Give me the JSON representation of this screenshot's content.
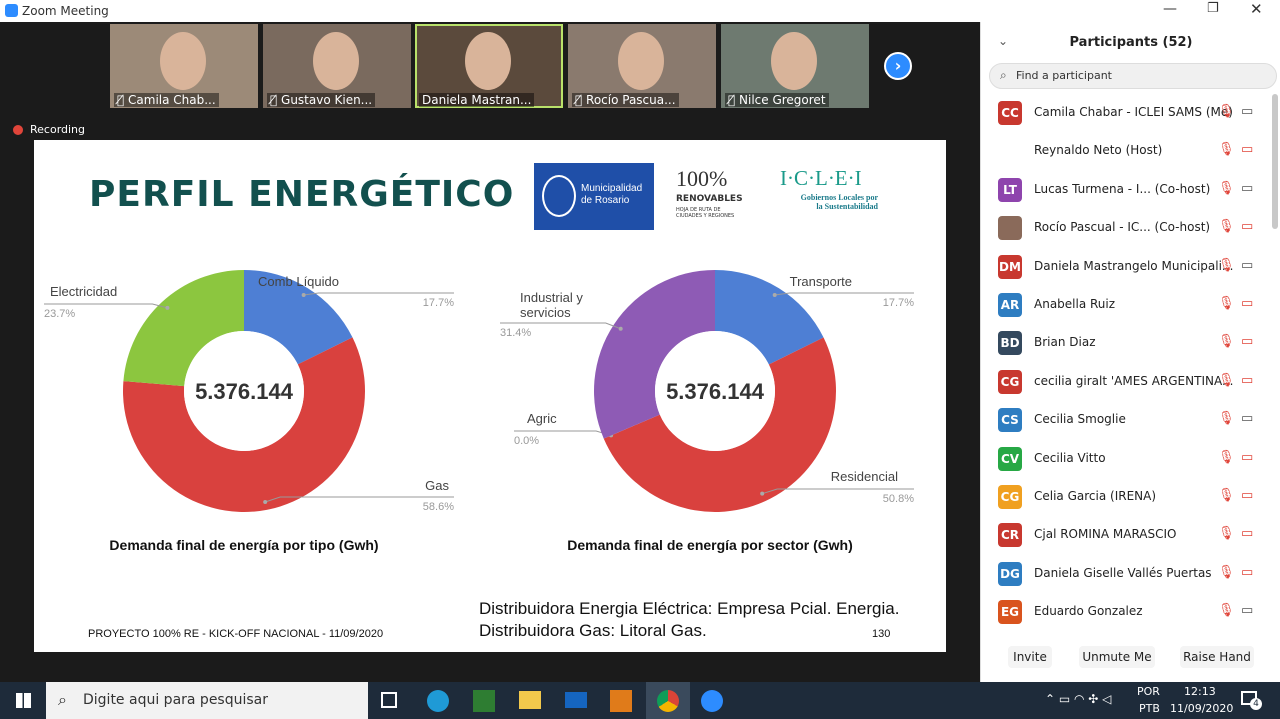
{
  "window": {
    "title": "Zoom Meeting"
  },
  "video_strip": {
    "tiles": [
      "Camila Chab...",
      "Gustavo Kien...",
      "Daniela Mastran...",
      "Rocío Pascua...",
      "Nilce Gregoret"
    ]
  },
  "recording": "Recording",
  "slide": {
    "title": "PERFIL ENERGÉTICO",
    "logos": {
      "municipality": "Municipalidad de Rosario",
      "renewables_big": "100%",
      "renewables": "RENOVABLES",
      "renewables_sub": "HOJA DE RUTA DE CIUDADES Y REGIONES",
      "iclei": "I·C·L·E·I",
      "iclei_sub": "Gobiernos Locales por la Sustentabilidad"
    },
    "charts": [
      {
        "type": "donut",
        "center_label": "5.376.144",
        "caption": "Demanda final de energía por tipo (Gwh)",
        "categories": [
          "Comb Líquido",
          "Gas",
          "Electricidad"
        ],
        "values": [
          17.7,
          58.6,
          23.7
        ],
        "value_labels": [
          "17.7%",
          "58.6%",
          "23.7%"
        ],
        "colors": [
          "#4e7fd4",
          "#d9413e",
          "#8cc63f"
        ]
      },
      {
        "type": "donut",
        "center_label": "5.376.144",
        "caption": "Demanda final de energía por sector (Gwh)",
        "categories": [
          "Transporte",
          "Residencial",
          "Agric",
          "Industrial y servicios"
        ],
        "values": [
          17.7,
          50.8,
          0.0,
          31.4
        ],
        "value_labels": [
          "17.7%",
          "50.8%",
          "0.0%",
          "31.4%"
        ],
        "colors": [
          "#4e7fd4",
          "#d9413e",
          "#f0b400",
          "#8e5bb5"
        ]
      }
    ],
    "distributors": [
      "Distribuidora Energia Eléctrica: Empresa Pcial. Energia.",
      "Distribuidora Gas:  Litoral Gas."
    ],
    "footer": "PROYECTO 100% RE - KICK-OFF NACIONAL - 11/09/2020",
    "page_number": "130"
  },
  "participants": {
    "title": "Participants (52)",
    "search_placeholder": "Find a participant",
    "rows": [
      {
        "initials": "CC",
        "color": "#c8382f",
        "name": "Camila Chabar - ICLEI SAMS (Me)"
      },
      {
        "name": "Reynaldo Neto (Host)"
      },
      {
        "initials": "LT",
        "color": "#8e44ad",
        "name": "Lucas Turmena - I... (Co-host)"
      },
      {
        "name": "Rocío Pascual - IC... (Co-host)"
      },
      {
        "initials": "DM",
        "color": "#c8382f",
        "name": "Daniela Mastrangelo Municipali..."
      },
      {
        "initials": "AR",
        "color": "#2e7dc1",
        "name": "Anabella Ruiz"
      },
      {
        "initials": "BD",
        "color": "#34495e",
        "name": "Brian Diaz"
      },
      {
        "initials": "CG",
        "color": "#c8382f",
        "name": "cecilia giralt 'AMES ARGENTINA..."
      },
      {
        "initials": "CS",
        "color": "#2e7dc1",
        "name": "Cecilia Smoglie"
      },
      {
        "initials": "CV",
        "color": "#27a845",
        "name": "Cecilia Vitto"
      },
      {
        "initials": "CG",
        "color": "#f0a020",
        "name": "Celia Garcia (IRENA)"
      },
      {
        "initials": "CR",
        "color": "#c8382f",
        "name": "Cjal ROMINA MARASCIO"
      },
      {
        "initials": "DG",
        "color": "#2e7dc1",
        "name": "Daniela Giselle Vallés Puertas"
      },
      {
        "initials": "EG",
        "color": "#d9541e",
        "name": "Eduardo Gonzalez"
      }
    ],
    "buttons": [
      "Invite",
      "Unmute Me",
      "Raise Hand"
    ]
  },
  "taskbar": {
    "search": "Digite aqui para pesquisar",
    "language": "POR",
    "layout": "PTB",
    "time": "12:13",
    "date": "11/09/2020",
    "notifications": "4"
  }
}
